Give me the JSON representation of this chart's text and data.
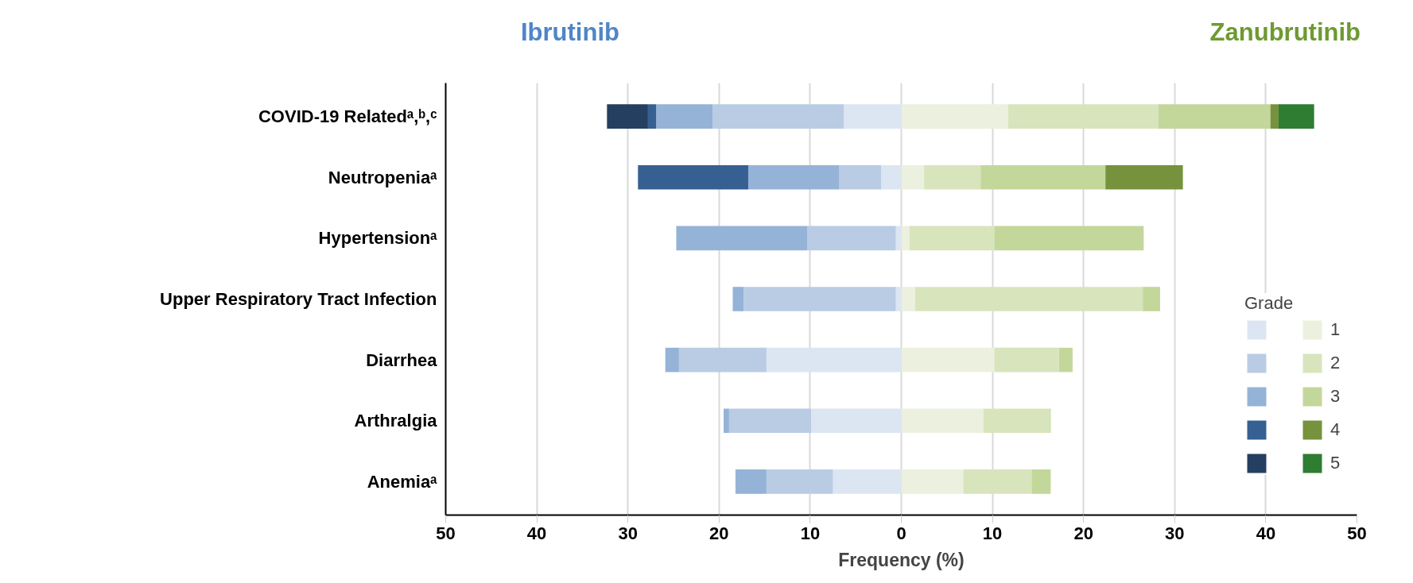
{
  "chart_data": {
    "type": "bar",
    "orientation": "horizontal",
    "stacked": true,
    "categories": [
      "COVID-19 Relatedᵃ,ᵇ,ᶜ",
      "Neutropeniaᵃ",
      "Hypertensionᵃ",
      "Upper Respiratory Tract Infection",
      "Diarrhea",
      "Arthralgia",
      "Anemiaᵃ"
    ],
    "series": [
      {
        "color": "#dce6f2",
        "values": [
          -6.3,
          -2.2,
          -0.6,
          -0.6,
          -14.8,
          -9.9,
          -7.5
        ]
      },
      {
        "color": "#b9cce4",
        "values": [
          -14.4,
          -4.6,
          -9.7,
          -16.7,
          -9.6,
          -9.0,
          -7.3
        ]
      },
      {
        "color": "#95b3d7",
        "values": [
          -6.2,
          -10.0,
          -14.4,
          -1.2,
          -1.5,
          -0.6,
          -3.4
        ]
      },
      {
        "color": "#366092",
        "values": [
          -0.9,
          -12.1,
          null,
          null,
          null,
          null,
          null
        ]
      },
      {
        "color": "#243f60",
        "values": [
          -4.5,
          null,
          null,
          null,
          null,
          null,
          null
        ]
      },
      {
        "name": "1",
        "color": "#ebf1de",
        "values": [
          11.7,
          2.5,
          0.9,
          1.5,
          10.2,
          9.0,
          6.8
        ]
      },
      {
        "name": "2",
        "color": "#d8e4bc",
        "values": [
          16.5,
          6.2,
          9.3,
          25.0,
          7.1,
          7.3,
          7.5
        ]
      },
      {
        "name": "3",
        "color": "#c4d79b",
        "values": [
          12.3,
          13.7,
          16.4,
          1.9,
          1.5,
          0.1,
          2.1
        ]
      },
      {
        "name": "4",
        "color": "#76923c",
        "values": [
          0.9,
          8.5,
          null,
          null,
          null,
          null,
          null
        ]
      },
      {
        "name": "5",
        "color": "#2e7d32",
        "values": [
          3.9,
          null,
          null,
          null,
          null,
          null,
          null
        ]
      }
    ],
    "xlim": [
      -50,
      50
    ],
    "xticks": [
      {
        "value": -50,
        "label": "50"
      },
      {
        "value": -40,
        "label": "40"
      },
      {
        "value": -30,
        "label": "30"
      },
      {
        "value": -20,
        "label": "20"
      },
      {
        "value": -10,
        "label": "10"
      },
      0,
      10,
      20,
      30,
      40,
      50
    ],
    "xlabel": "Frequency (%)",
    "legend_title": "Grade",
    "legend": "right",
    "grid": "x",
    "annotations": [
      "Ibrutinib",
      "Zanubrutinib"
    ]
  }
}
